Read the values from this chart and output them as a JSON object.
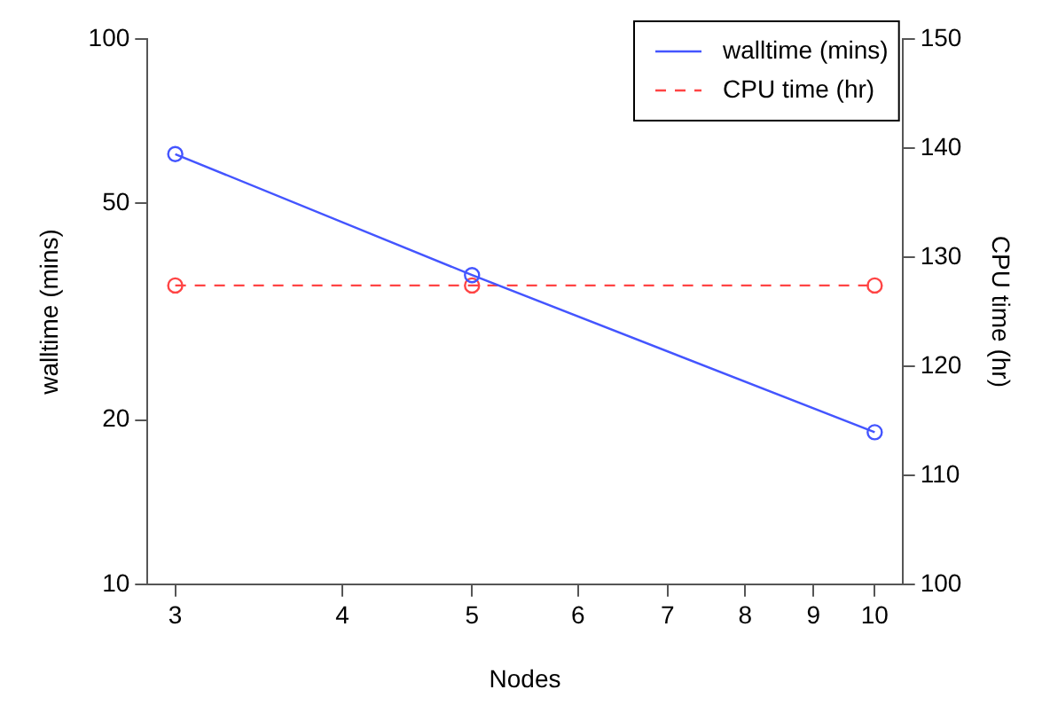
{
  "chart_data": {
    "type": "line",
    "xlabel": "Nodes",
    "ylabel": "walltime (mins)",
    "y2label": "CPU time (hr)",
    "x": [
      3,
      5,
      10
    ],
    "series": [
      {
        "name": "walltime (mins)",
        "color": "#4455ff",
        "values": [
          61.5,
          36.9,
          19.0
        ],
        "line_style": "solid"
      },
      {
        "name": "CPU time (hr)",
        "color": "#ff4444",
        "values": [
          127.4,
          127.4,
          127.4
        ],
        "axis": "y2",
        "line_style": "dashed"
      }
    ],
    "log": "xy",
    "xlim": [
      2.86,
      10.49
    ],
    "xticks": [
      3,
      4,
      5,
      6,
      7,
      8,
      9,
      10
    ],
    "ylim": [
      10,
      100
    ],
    "yticks": [
      10,
      20,
      50,
      100
    ],
    "y2lim": [
      100,
      150
    ],
    "y2ticks": [
      100,
      110,
      120,
      130,
      140,
      150
    ],
    "marker": "circle",
    "grid": false,
    "legend": "top right"
  }
}
